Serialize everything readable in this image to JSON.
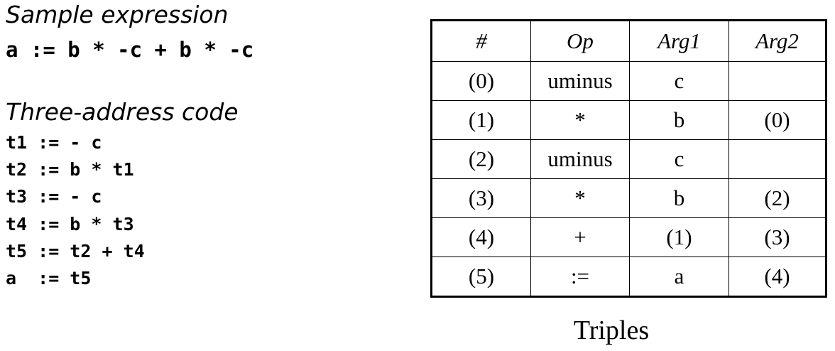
{
  "sample": {
    "heading": "Sample expression",
    "expression": "a := b * -c + b * -c"
  },
  "tac": {
    "heading": "Three-address code",
    "lines": [
      "t1 := - c",
      "t2 := b * t1",
      "t3 := - c",
      "t4 := b * t3",
      "t5 := t2 + t4",
      "a  := t5"
    ]
  },
  "table": {
    "headers": [
      "#",
      "Op",
      "Arg1",
      "Arg2"
    ],
    "rows": [
      [
        "(0)",
        "uminus",
        "c",
        ""
      ],
      [
        "(1)",
        "*",
        "b",
        "(0)"
      ],
      [
        "(2)",
        "uminus",
        "c",
        ""
      ],
      [
        "(3)",
        "*",
        "b",
        "(2)"
      ],
      [
        "(4)",
        "+",
        "(1)",
        "(3)"
      ],
      [
        "(5)",
        ":=",
        "a",
        "(4)"
      ]
    ]
  },
  "caption": "Triples"
}
